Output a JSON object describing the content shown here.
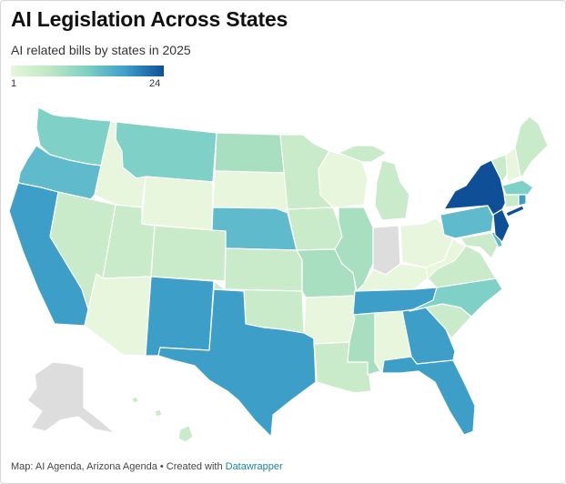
{
  "title": "AI Legislation Across States",
  "subtitle": "AI related bills by states in 2025",
  "legend": {
    "min": "1",
    "max": "24"
  },
  "footer": {
    "text": "Map: AI Agenda, Arizona Agenda • Created with ",
    "link": "Datawrapper"
  },
  "colors": {
    "lightest": "#e7f6dd",
    "light": "#c9ebc9",
    "mid_green": "#a8dfc0",
    "teal_light": "#7fd0c6",
    "teal": "#5fbbcc",
    "blue": "#3d9fc8",
    "dark_blue": "#0e4f98",
    "no_data": "#dddddd"
  }
}
